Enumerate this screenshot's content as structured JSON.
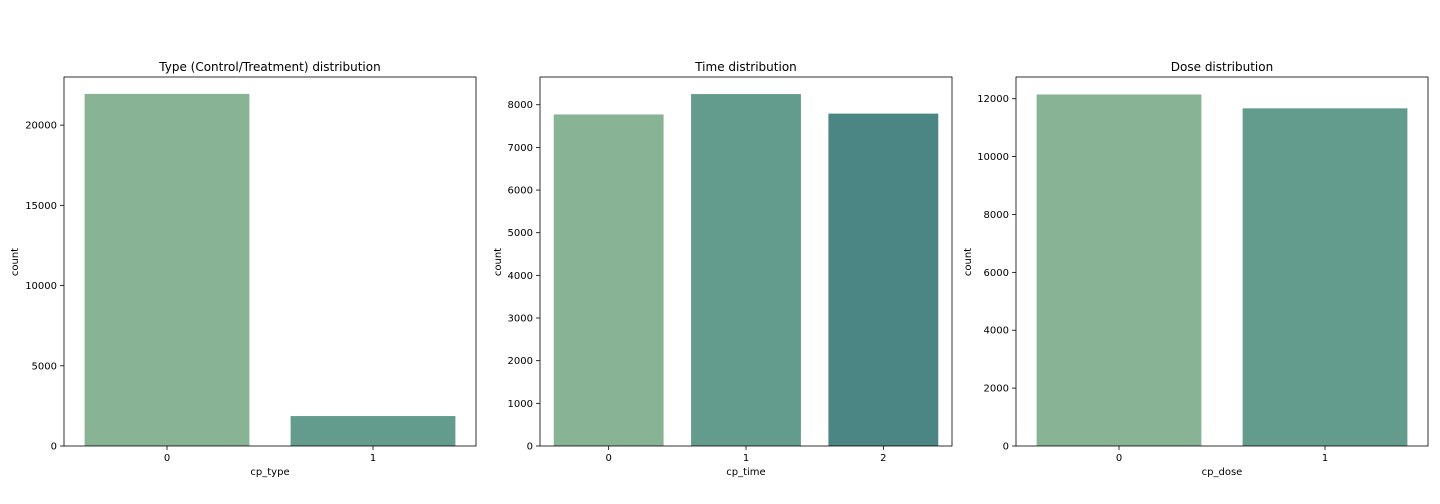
{
  "chart_data": [
    {
      "type": "bar",
      "title": "Type (Control/Treatment) distribution",
      "xlabel": "cp_type",
      "ylabel": "count",
      "categories": [
        "0",
        "1"
      ],
      "values": [
        21948,
        1866
      ],
      "ylim": [
        0,
        23000
      ],
      "yticks": [
        0,
        5000,
        10000,
        15000,
        20000
      ],
      "colors": [
        "#88b394",
        "#639b8d"
      ],
      "grid": false,
      "legend": "none"
    },
    {
      "type": "bar",
      "title": "Time distribution",
      "xlabel": "cp_time",
      "ylabel": "count",
      "categories": [
        "0",
        "1",
        "2"
      ],
      "values": [
        7772,
        8250,
        7792
      ],
      "ylim": [
        0,
        8650
      ],
      "yticks": [
        0,
        1000,
        2000,
        3000,
        4000,
        5000,
        6000,
        7000,
        8000
      ],
      "colors": [
        "#88b394",
        "#639b8d",
        "#4b8584"
      ],
      "grid": false,
      "legend": "none"
    },
    {
      "type": "bar",
      "title": "Dose distribution",
      "xlabel": "cp_dose",
      "ylabel": "count",
      "categories": [
        "0",
        "1"
      ],
      "values": [
        12147,
        11667
      ],
      "ylim": [
        0,
        12750
      ],
      "yticks": [
        0,
        2000,
        4000,
        6000,
        8000,
        10000,
        12000
      ],
      "colors": [
        "#88b394",
        "#639b8d"
      ],
      "grid": false,
      "legend": "none"
    }
  ]
}
